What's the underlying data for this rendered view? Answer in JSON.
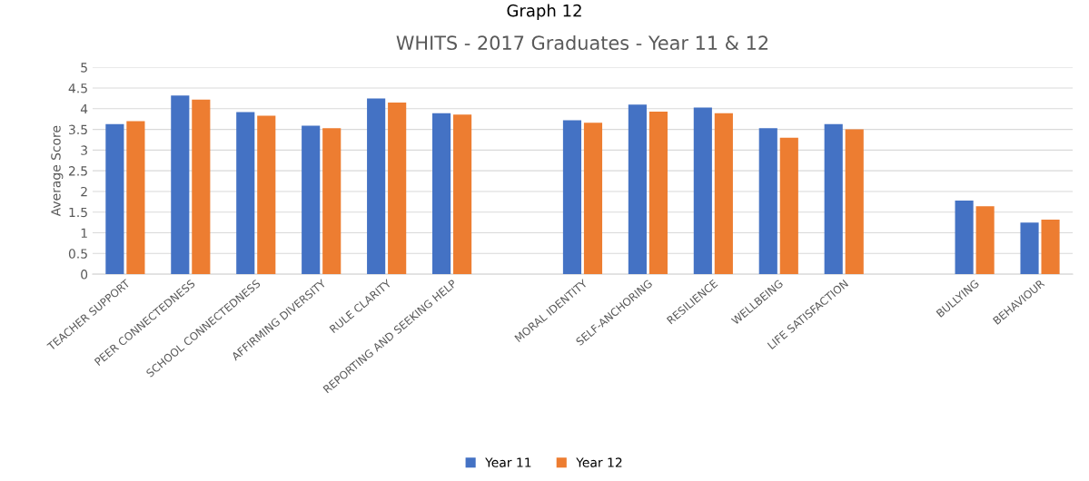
{
  "chart_data": {
    "type": "bar",
    "title": "WHITS - 2017 Graduates - Year 11 & 12",
    "ylabel": "Average Score",
    "annotations": [
      "Graph 12"
    ],
    "categories": [
      "TEACHER SUPPORT",
      "PEER CONNECTEDNESS",
      "SCHOOL CONNECTEDNESS",
      "AFFIRMING DIVERSITY",
      "RULE CLARITY",
      "REPORTING AND SEEKING HELP",
      null,
      "MORAL IDENTITY",
      "SELF-ANCHORING",
      "RESILIENCE",
      "WELLBEING",
      "LIFE SATISFACTION",
      null,
      "BULLYING",
      "BEHAVIOUR"
    ],
    "series": [
      {
        "name": "Year 11",
        "color": "#4472c4",
        "values": [
          3.63,
          4.32,
          3.92,
          3.59,
          4.25,
          3.89,
          null,
          3.72,
          4.1,
          4.03,
          3.53,
          3.63,
          null,
          1.78,
          1.25
        ]
      },
      {
        "name": "Year 12",
        "color": "#ed7d31",
        "values": [
          3.7,
          4.22,
          3.83,
          3.53,
          4.15,
          3.86,
          null,
          3.66,
          3.93,
          3.89,
          3.3,
          3.5,
          null,
          1.64,
          1.32
        ]
      }
    ],
    "ylim": [
      0,
      5
    ],
    "yticks": [
      0,
      0.5,
      1,
      1.5,
      2,
      2.5,
      3,
      3.5,
      4,
      4.5,
      5
    ],
    "grid": "y",
    "legend": "bottom"
  }
}
